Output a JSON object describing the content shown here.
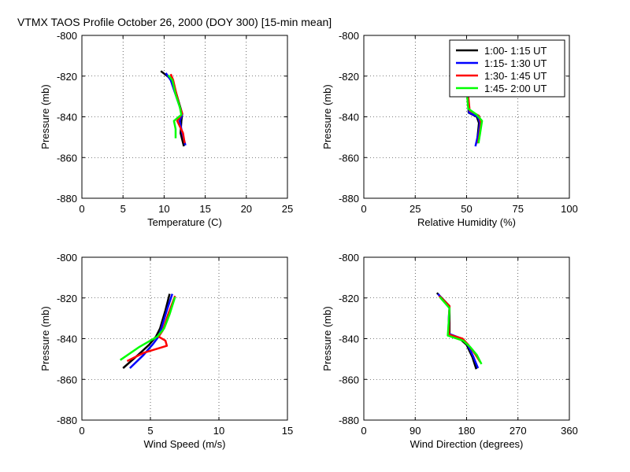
{
  "title": "VTMX TAOS Profile   October 26, 2000 (DOY 300) [15-min mean]",
  "series_meta": [
    {
      "name": "1:00- 1:15 UT",
      "color": "#000000"
    },
    {
      "name": "1:15- 1:30 UT",
      "color": "#0000ff"
    },
    {
      "name": "1:30- 1:45 UT",
      "color": "#ff0000"
    },
    {
      "name": "1:45- 2:00 UT",
      "color": "#00ff00"
    }
  ],
  "chart_data": [
    {
      "type": "line",
      "xlabel": "Temperature (C)",
      "ylabel": "Pressure (mb)",
      "xlim": [
        0,
        25
      ],
      "ylim": [
        -880,
        -800
      ],
      "xticks": [
        0,
        5,
        10,
        15,
        20,
        25
      ],
      "yticks": [
        -800,
        -820,
        -840,
        -860,
        -880
      ],
      "grid": true,
      "legend": false,
      "series": [
        {
          "name": "1:00- 1:15 UT",
          "points": [
            [
              9.6,
              -817.5
            ],
            [
              10.7,
              -821
            ],
            [
              11.3,
              -826
            ],
            [
              11.8,
              -833
            ],
            [
              12.2,
              -838.5
            ],
            [
              12.1,
              -842
            ],
            [
              12.0,
              -848
            ],
            [
              12.4,
              -854.5
            ]
          ]
        },
        {
          "name": "1:15- 1:30 UT",
          "points": [
            [
              10.2,
              -818.5
            ],
            [
              10.8,
              -822
            ],
            [
              11.3,
              -828
            ],
            [
              11.9,
              -835
            ],
            [
              12.2,
              -839
            ],
            [
              11.9,
              -842
            ],
            [
              12.2,
              -848
            ],
            [
              12.6,
              -854
            ]
          ]
        },
        {
          "name": "1:30- 1:45 UT",
          "points": [
            [
              10.8,
              -819
            ],
            [
              11.1,
              -822
            ],
            [
              11.5,
              -829
            ],
            [
              11.9,
              -835
            ],
            [
              12.2,
              -838.5
            ],
            [
              11.6,
              -842
            ],
            [
              12.3,
              -848
            ],
            [
              12.5,
              -853
            ]
          ]
        },
        {
          "name": "1:45- 2:00 UT",
          "points": [
            [
              10.5,
              -819.5
            ],
            [
              11.0,
              -822
            ],
            [
              11.4,
              -829
            ],
            [
              11.9,
              -835
            ],
            [
              12.1,
              -839
            ],
            [
              11.2,
              -842
            ],
            [
              11.4,
              -846
            ],
            [
              11.4,
              -850.5
            ]
          ]
        }
      ]
    },
    {
      "type": "line",
      "xlabel": "Relative Humidity (%)",
      "ylabel": "Pressure (mb)",
      "xlim": [
        0,
        100
      ],
      "ylim": [
        -880,
        -800
      ],
      "xticks": [
        0,
        25,
        50,
        75,
        100
      ],
      "yticks": [
        -800,
        -820,
        -840,
        -860,
        -880
      ],
      "grid": true,
      "legend": true,
      "legend_position": "top-right",
      "series": [
        {
          "name": "1:00- 1:15 UT",
          "points": [
            [
              50.5,
              -828
            ],
            [
              50.8,
              -833
            ],
            [
              51.0,
              -838
            ],
            [
              55.0,
              -840
            ],
            [
              56.0,
              -843
            ],
            [
              55.5,
              -848
            ],
            [
              55.0,
              -853
            ]
          ]
        },
        {
          "name": "1:15- 1:30 UT",
          "points": [
            [
              50.6,
              -828
            ],
            [
              50.9,
              -833
            ],
            [
              51.2,
              -838
            ],
            [
              55.5,
              -840
            ],
            [
              56.5,
              -843
            ],
            [
              55.8,
              -848
            ],
            [
              54.3,
              -854.5
            ]
          ]
        },
        {
          "name": "1:30- 1:45 UT",
          "points": [
            [
              50.5,
              -827
            ],
            [
              51.0,
              -832
            ],
            [
              51.5,
              -837
            ],
            [
              56.0,
              -839.5
            ],
            [
              57.0,
              -843
            ],
            [
              56.2,
              -849
            ],
            [
              55.5,
              -853
            ]
          ]
        },
        {
          "name": "1:45- 2:00 UT",
          "points": [
            [
              50.2,
              -824
            ],
            [
              50.3,
              -830
            ],
            [
              50.8,
              -836
            ],
            [
              55.0,
              -839
            ],
            [
              57.5,
              -842
            ],
            [
              56.6,
              -848
            ],
            [
              55.8,
              -853
            ]
          ]
        }
      ]
    },
    {
      "type": "line",
      "xlabel": "Wind Speed (m/s)",
      "ylabel": "Pressure (mb)",
      "xlim": [
        0,
        15
      ],
      "ylim": [
        -880,
        -800
      ],
      "xticks": [
        0,
        5,
        10,
        15
      ],
      "yticks": [
        -800,
        -820,
        -840,
        -860,
        -880
      ],
      "grid": true,
      "legend": false,
      "series": [
        {
          "name": "1:00- 1:15 UT",
          "points": [
            [
              6.4,
              -818
            ],
            [
              6.1,
              -826
            ],
            [
              5.7,
              -835
            ],
            [
              5.4,
              -839
            ],
            [
              4.9,
              -843
            ],
            [
              4.1,
              -848
            ],
            [
              3.0,
              -854.5
            ]
          ]
        },
        {
          "name": "1:15- 1:30 UT",
          "points": [
            [
              6.6,
              -818
            ],
            [
              6.2,
              -826
            ],
            [
              5.8,
              -835
            ],
            [
              5.6,
              -839
            ],
            [
              5.2,
              -842.5
            ],
            [
              4.5,
              -848
            ],
            [
              3.5,
              -854.5
            ]
          ]
        },
        {
          "name": "1:30- 1:45 UT",
          "points": [
            [
              6.8,
              -819
            ],
            [
              6.3,
              -828
            ],
            [
              5.9,
              -836
            ],
            [
              5.6,
              -839
            ],
            [
              6.1,
              -841
            ],
            [
              6.2,
              -843.5
            ],
            [
              4.5,
              -847
            ],
            [
              3.3,
              -851
            ]
          ]
        },
        {
          "name": "1:45- 2:00 UT",
          "points": [
            [
              6.8,
              -819.5
            ],
            [
              6.4,
              -828
            ],
            [
              6.0,
              -835
            ],
            [
              5.5,
              -839
            ],
            [
              4.2,
              -844
            ],
            [
              2.8,
              -850.5
            ]
          ]
        }
      ]
    },
    {
      "type": "line",
      "xlabel": "Wind Direction (degrees)",
      "ylabel": "Pressure (mb)",
      "xlim": [
        0,
        360
      ],
      "ylim": [
        -880,
        -800
      ],
      "xticks": [
        0,
        90,
        180,
        270,
        360
      ],
      "yticks": [
        -800,
        -820,
        -840,
        -860,
        -880
      ],
      "grid": true,
      "legend": false,
      "series": [
        {
          "name": "1:00- 1:15 UT",
          "points": [
            [
              128,
              -817.5
            ],
            [
              150,
              -824
            ],
            [
              150,
              -829
            ],
            [
              150,
              -838
            ],
            [
              170,
              -840.5
            ],
            [
              180,
              -843
            ],
            [
              190,
              -849
            ],
            [
              197,
              -855
            ]
          ]
        },
        {
          "name": "1:15- 1:30 UT",
          "points": [
            [
              130,
              -818
            ],
            [
              150,
              -825
            ],
            [
              149,
              -829
            ],
            [
              148,
              -837.5
            ],
            [
              172,
              -840
            ],
            [
              182,
              -843
            ],
            [
              192,
              -849
            ],
            [
              200,
              -854.5
            ]
          ]
        },
        {
          "name": "1:30- 1:45 UT",
          "points": [
            [
              132,
              -819
            ],
            [
              150,
              -824
            ],
            [
              149,
              -831
            ],
            [
              149,
              -838
            ],
            [
              173,
              -840
            ],
            [
              183,
              -843
            ],
            [
              196,
              -848
            ],
            [
              204,
              -851.5
            ]
          ]
        },
        {
          "name": "1:45- 2:00 UT",
          "points": [
            [
              133,
              -819.5
            ],
            [
              150,
              -825
            ],
            [
              149,
              -831
            ],
            [
              147,
              -838.5
            ],
            [
              174,
              -841
            ],
            [
              186,
              -844
            ],
            [
              198,
              -848
            ],
            [
              206,
              -852.5
            ]
          ]
        }
      ]
    }
  ]
}
